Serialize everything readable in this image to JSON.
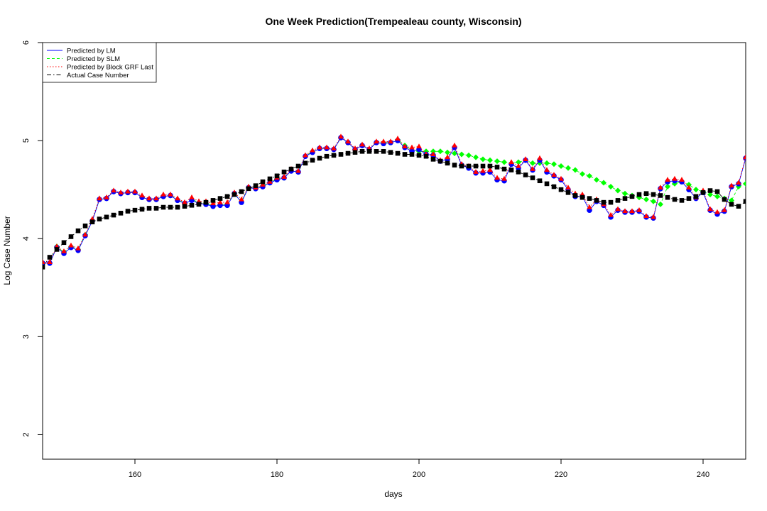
{
  "chart_data": {
    "type": "scatter",
    "title": "One Week Prediction(Trempealeau county, Wisconsin)",
    "xlabel": "days",
    "ylabel": "Log Case Number",
    "xlim": [
      147,
      246
    ],
    "ylim": [
      1.75,
      6.0
    ],
    "x_ticks": [
      160,
      180,
      200,
      220,
      240
    ],
    "y_ticks": [
      2,
      3,
      4,
      5,
      6
    ],
    "grid": false,
    "legend_position": "top-left",
    "legend": [
      {
        "label": "Predicted by LM",
        "color": "#0000ff",
        "line": "solid"
      },
      {
        "label": "Predicted by SLM",
        "color": "#00ff00",
        "line": "dashed"
      },
      {
        "label": "Predicted by Block GRF Last",
        "color": "#ff0000",
        "line": "dotted"
      },
      {
        "label": "Actual Case Number",
        "color": "#000000",
        "line": "dotdash"
      }
    ],
    "x": [
      147,
      148,
      149,
      150,
      151,
      152,
      153,
      154,
      155,
      156,
      157,
      158,
      159,
      160,
      161,
      162,
      163,
      164,
      165,
      166,
      167,
      168,
      169,
      170,
      171,
      172,
      173,
      174,
      175,
      176,
      177,
      178,
      179,
      180,
      181,
      182,
      183,
      184,
      185,
      186,
      187,
      188,
      189,
      190,
      191,
      192,
      193,
      194,
      195,
      196,
      197,
      198,
      199,
      200,
      201,
      202,
      203,
      204,
      205,
      206,
      207,
      208,
      209,
      210,
      211,
      212,
      213,
      214,
      215,
      216,
      217,
      218,
      219,
      220,
      221,
      222,
      223,
      224,
      225,
      226,
      227,
      228,
      229,
      230,
      231,
      232,
      233,
      234,
      235,
      236,
      237,
      238,
      239,
      240,
      241,
      242,
      243,
      244,
      245,
      246
    ],
    "series": [
      {
        "name": "Actual Case Number",
        "color": "#000000",
        "marker": "square",
        "values": [
          3.71,
          3.81,
          3.89,
          3.96,
          4.02,
          4.08,
          4.13,
          4.17,
          4.2,
          4.22,
          4.24,
          4.26,
          4.28,
          4.29,
          4.3,
          4.31,
          4.31,
          4.32,
          4.32,
          4.32,
          4.33,
          4.34,
          4.35,
          4.37,
          4.39,
          4.41,
          4.43,
          4.45,
          4.48,
          4.51,
          4.54,
          4.58,
          4.61,
          4.64,
          4.68,
          4.71,
          4.74,
          4.77,
          4.8,
          4.82,
          4.84,
          4.85,
          4.86,
          4.87,
          4.88,
          4.89,
          4.89,
          4.89,
          4.89,
          4.88,
          4.87,
          4.86,
          4.86,
          4.85,
          4.84,
          4.81,
          4.79,
          4.77,
          4.75,
          4.74,
          4.74,
          4.74,
          4.74,
          4.74,
          4.73,
          4.71,
          4.7,
          4.68,
          4.65,
          4.62,
          4.59,
          4.56,
          4.53,
          4.5,
          4.47,
          4.44,
          4.42,
          4.41,
          4.39,
          4.37,
          4.37,
          4.39,
          4.41,
          4.43,
          4.45,
          4.46,
          4.45,
          4.44,
          4.42,
          4.4,
          4.39,
          4.41,
          4.43,
          4.47,
          4.49,
          4.48,
          4.4,
          4.35,
          4.33,
          4.38
        ]
      },
      {
        "name": "Predicted by SLM",
        "color": "#00ff00",
        "marker": "diamond",
        "values": [
          3.75,
          3.75,
          3.92,
          3.86,
          3.92,
          3.89,
          4.04,
          4.18,
          4.4,
          4.41,
          4.48,
          4.46,
          4.47,
          4.47,
          4.42,
          4.4,
          4.4,
          4.43,
          4.44,
          4.4,
          4.36,
          4.4,
          4.37,
          4.36,
          4.34,
          4.35,
          4.35,
          4.46,
          4.38,
          4.52,
          4.51,
          4.54,
          4.57,
          4.61,
          4.62,
          4.69,
          4.68,
          4.84,
          4.89,
          4.92,
          4.92,
          4.91,
          5.03,
          4.98,
          4.91,
          4.95,
          4.91,
          4.98,
          4.98,
          4.98,
          5.01,
          4.95,
          4.9,
          4.89,
          4.89,
          4.89,
          4.89,
          4.88,
          4.87,
          4.86,
          4.85,
          4.83,
          4.81,
          4.8,
          4.79,
          4.78,
          4.77,
          4.78,
          4.8,
          4.77,
          4.77,
          4.77,
          4.76,
          4.74,
          4.72,
          4.7,
          4.66,
          4.64,
          4.6,
          4.57,
          4.53,
          4.49,
          4.46,
          4.44,
          4.42,
          4.4,
          4.38,
          4.35,
          4.53,
          4.56,
          4.58,
          4.55,
          4.5,
          4.48,
          4.45,
          4.43,
          4.41,
          4.39,
          4.53,
          4.56
        ]
      },
      {
        "name": "Predicted by LM",
        "color": "#0000ff",
        "marker": "circle",
        "values": [
          3.75,
          3.75,
          3.91,
          3.85,
          3.91,
          3.88,
          4.03,
          4.18,
          4.4,
          4.41,
          4.48,
          4.46,
          4.47,
          4.47,
          4.42,
          4.4,
          4.4,
          4.43,
          4.44,
          4.39,
          4.36,
          4.39,
          4.36,
          4.35,
          4.33,
          4.34,
          4.34,
          4.46,
          4.37,
          4.52,
          4.51,
          4.53,
          4.57,
          4.6,
          4.62,
          4.69,
          4.68,
          4.84,
          4.88,
          4.92,
          4.92,
          4.91,
          5.03,
          4.98,
          4.91,
          4.95,
          4.91,
          4.98,
          4.97,
          4.98,
          5.0,
          4.93,
          4.89,
          4.91,
          4.86,
          4.85,
          4.79,
          4.81,
          4.93,
          4.75,
          4.72,
          4.67,
          4.67,
          4.68,
          4.6,
          4.59,
          4.76,
          4.72,
          4.8,
          4.7,
          4.8,
          4.68,
          4.64,
          4.6,
          4.5,
          4.43,
          4.43,
          4.29,
          4.38,
          4.34,
          4.22,
          4.29,
          4.27,
          4.27,
          4.28,
          4.22,
          4.21,
          4.51,
          4.58,
          4.59,
          4.58,
          4.5,
          4.41,
          4.47,
          4.29,
          4.25,
          4.28,
          4.53,
          4.56,
          4.82
        ]
      },
      {
        "name": "Predicted by Block GRF Last",
        "color": "#ff0000",
        "marker": "triangle",
        "values": [
          3.76,
          3.76,
          3.92,
          3.87,
          3.93,
          3.9,
          4.04,
          4.2,
          4.41,
          4.42,
          4.49,
          4.47,
          4.48,
          4.48,
          4.44,
          4.41,
          4.41,
          4.45,
          4.45,
          4.41,
          4.37,
          4.42,
          4.38,
          4.38,
          4.36,
          4.37,
          4.37,
          4.47,
          4.4,
          4.53,
          4.52,
          4.55,
          4.58,
          4.62,
          4.63,
          4.71,
          4.69,
          4.85,
          4.9,
          4.93,
          4.93,
          4.92,
          5.04,
          4.99,
          4.92,
          4.96,
          4.92,
          4.99,
          4.99,
          4.99,
          5.02,
          4.94,
          4.93,
          4.94,
          4.86,
          4.86,
          4.8,
          4.83,
          4.95,
          4.76,
          4.74,
          4.68,
          4.69,
          4.7,
          4.62,
          4.61,
          4.78,
          4.74,
          4.81,
          4.71,
          4.82,
          4.7,
          4.65,
          4.61,
          4.52,
          4.46,
          4.45,
          4.32,
          4.4,
          4.35,
          4.24,
          4.3,
          4.28,
          4.28,
          4.29,
          4.23,
          4.22,
          4.52,
          4.6,
          4.61,
          4.6,
          4.52,
          4.42,
          4.49,
          4.3,
          4.27,
          4.29,
          4.54,
          4.57,
          4.83
        ]
      }
    ]
  }
}
